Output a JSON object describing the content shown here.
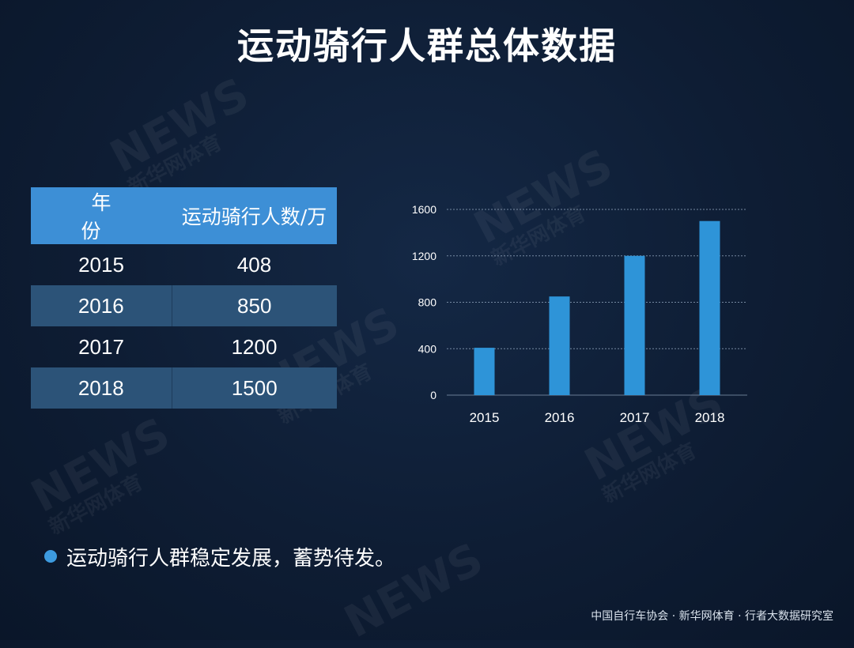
{
  "title": "运动骑行人群总体数据",
  "table": {
    "headers": [
      "年　份",
      "运动骑行人数/万"
    ],
    "rows": [
      {
        "year": "2015",
        "value": "408"
      },
      {
        "year": "2016",
        "value": "850"
      },
      {
        "year": "2017",
        "value": "1200"
      },
      {
        "year": "2018",
        "value": "1500"
      }
    ]
  },
  "chart_data": {
    "type": "bar",
    "categories": [
      "2015",
      "2016",
      "2017",
      "2018"
    ],
    "values": [
      408,
      850,
      1200,
      1500
    ],
    "yticks": [
      0,
      400,
      800,
      1200,
      1600
    ],
    "ylim": [
      0,
      1600
    ],
    "grid": true,
    "bar_color": "#2e94d8"
  },
  "bullet": "运动骑行人群稳定发展，蓄势待发。",
  "source": "中国自行车协会 · 新华网体育 · 行者大数据研究室",
  "watermark": {
    "mark": "NEWS",
    "name": "新华网体育"
  }
}
